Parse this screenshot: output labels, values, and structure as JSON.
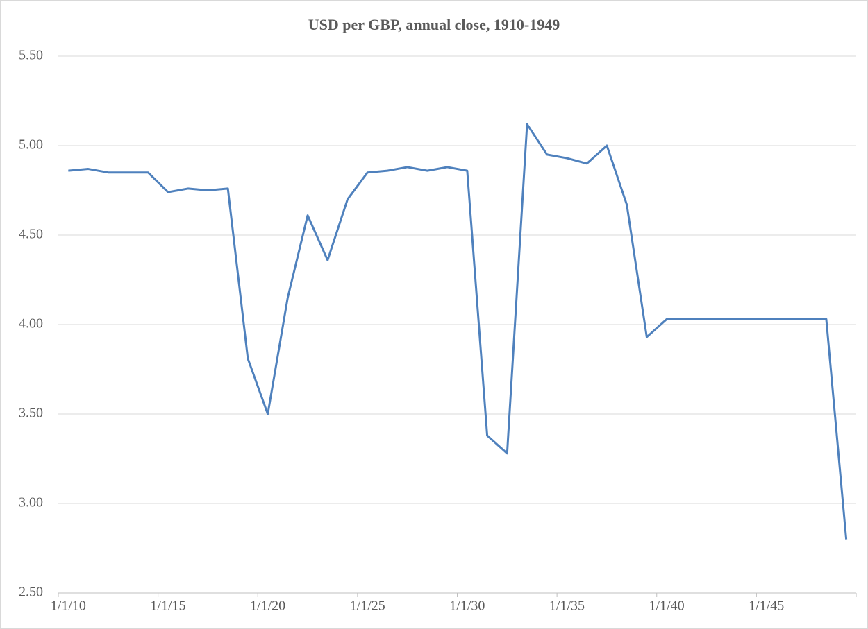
{
  "chart_data": {
    "type": "line",
    "title": "USD per GBP, annual close, 1910-1949",
    "categories": [
      "1/1/10",
      null,
      null,
      null,
      null,
      "1/1/15",
      null,
      null,
      null,
      null,
      "1/1/20",
      null,
      null,
      null,
      null,
      "1/1/25",
      null,
      null,
      null,
      null,
      "1/1/30",
      null,
      null,
      null,
      null,
      "1/1/35",
      null,
      null,
      null,
      null,
      "1/1/40",
      null,
      null,
      null,
      null,
      "1/1/45",
      null,
      null,
      null,
      null
    ],
    "series": [
      {
        "name": "USD per GBP",
        "color": "#4f81bd",
        "values": [
          4.86,
          4.87,
          4.85,
          4.85,
          4.85,
          4.74,
          4.76,
          4.75,
          4.76,
          3.81,
          3.5,
          4.15,
          4.61,
          4.36,
          4.7,
          4.85,
          4.86,
          4.88,
          4.86,
          4.88,
          4.86,
          3.38,
          3.28,
          5.12,
          4.95,
          4.93,
          4.9,
          5.0,
          4.67,
          3.93,
          4.03,
          4.03,
          4.03,
          4.03,
          4.03,
          4.03,
          4.03,
          4.03,
          4.03,
          2.8
        ]
      }
    ],
    "ylim": [
      2.5,
      5.5
    ],
    "yticks": [
      {
        "value": 2.5,
        "label": "2.50"
      },
      {
        "value": 3,
        "label": "3.00"
      },
      {
        "value": 3.5,
        "label": "3.50"
      },
      {
        "value": 4,
        "label": "4.00"
      },
      {
        "value": 4.5,
        "label": "4.50"
      },
      {
        "value": 5,
        "label": "5.00"
      },
      {
        "value": 5.5,
        "label": "5.50"
      }
    ],
    "grid": true
  }
}
